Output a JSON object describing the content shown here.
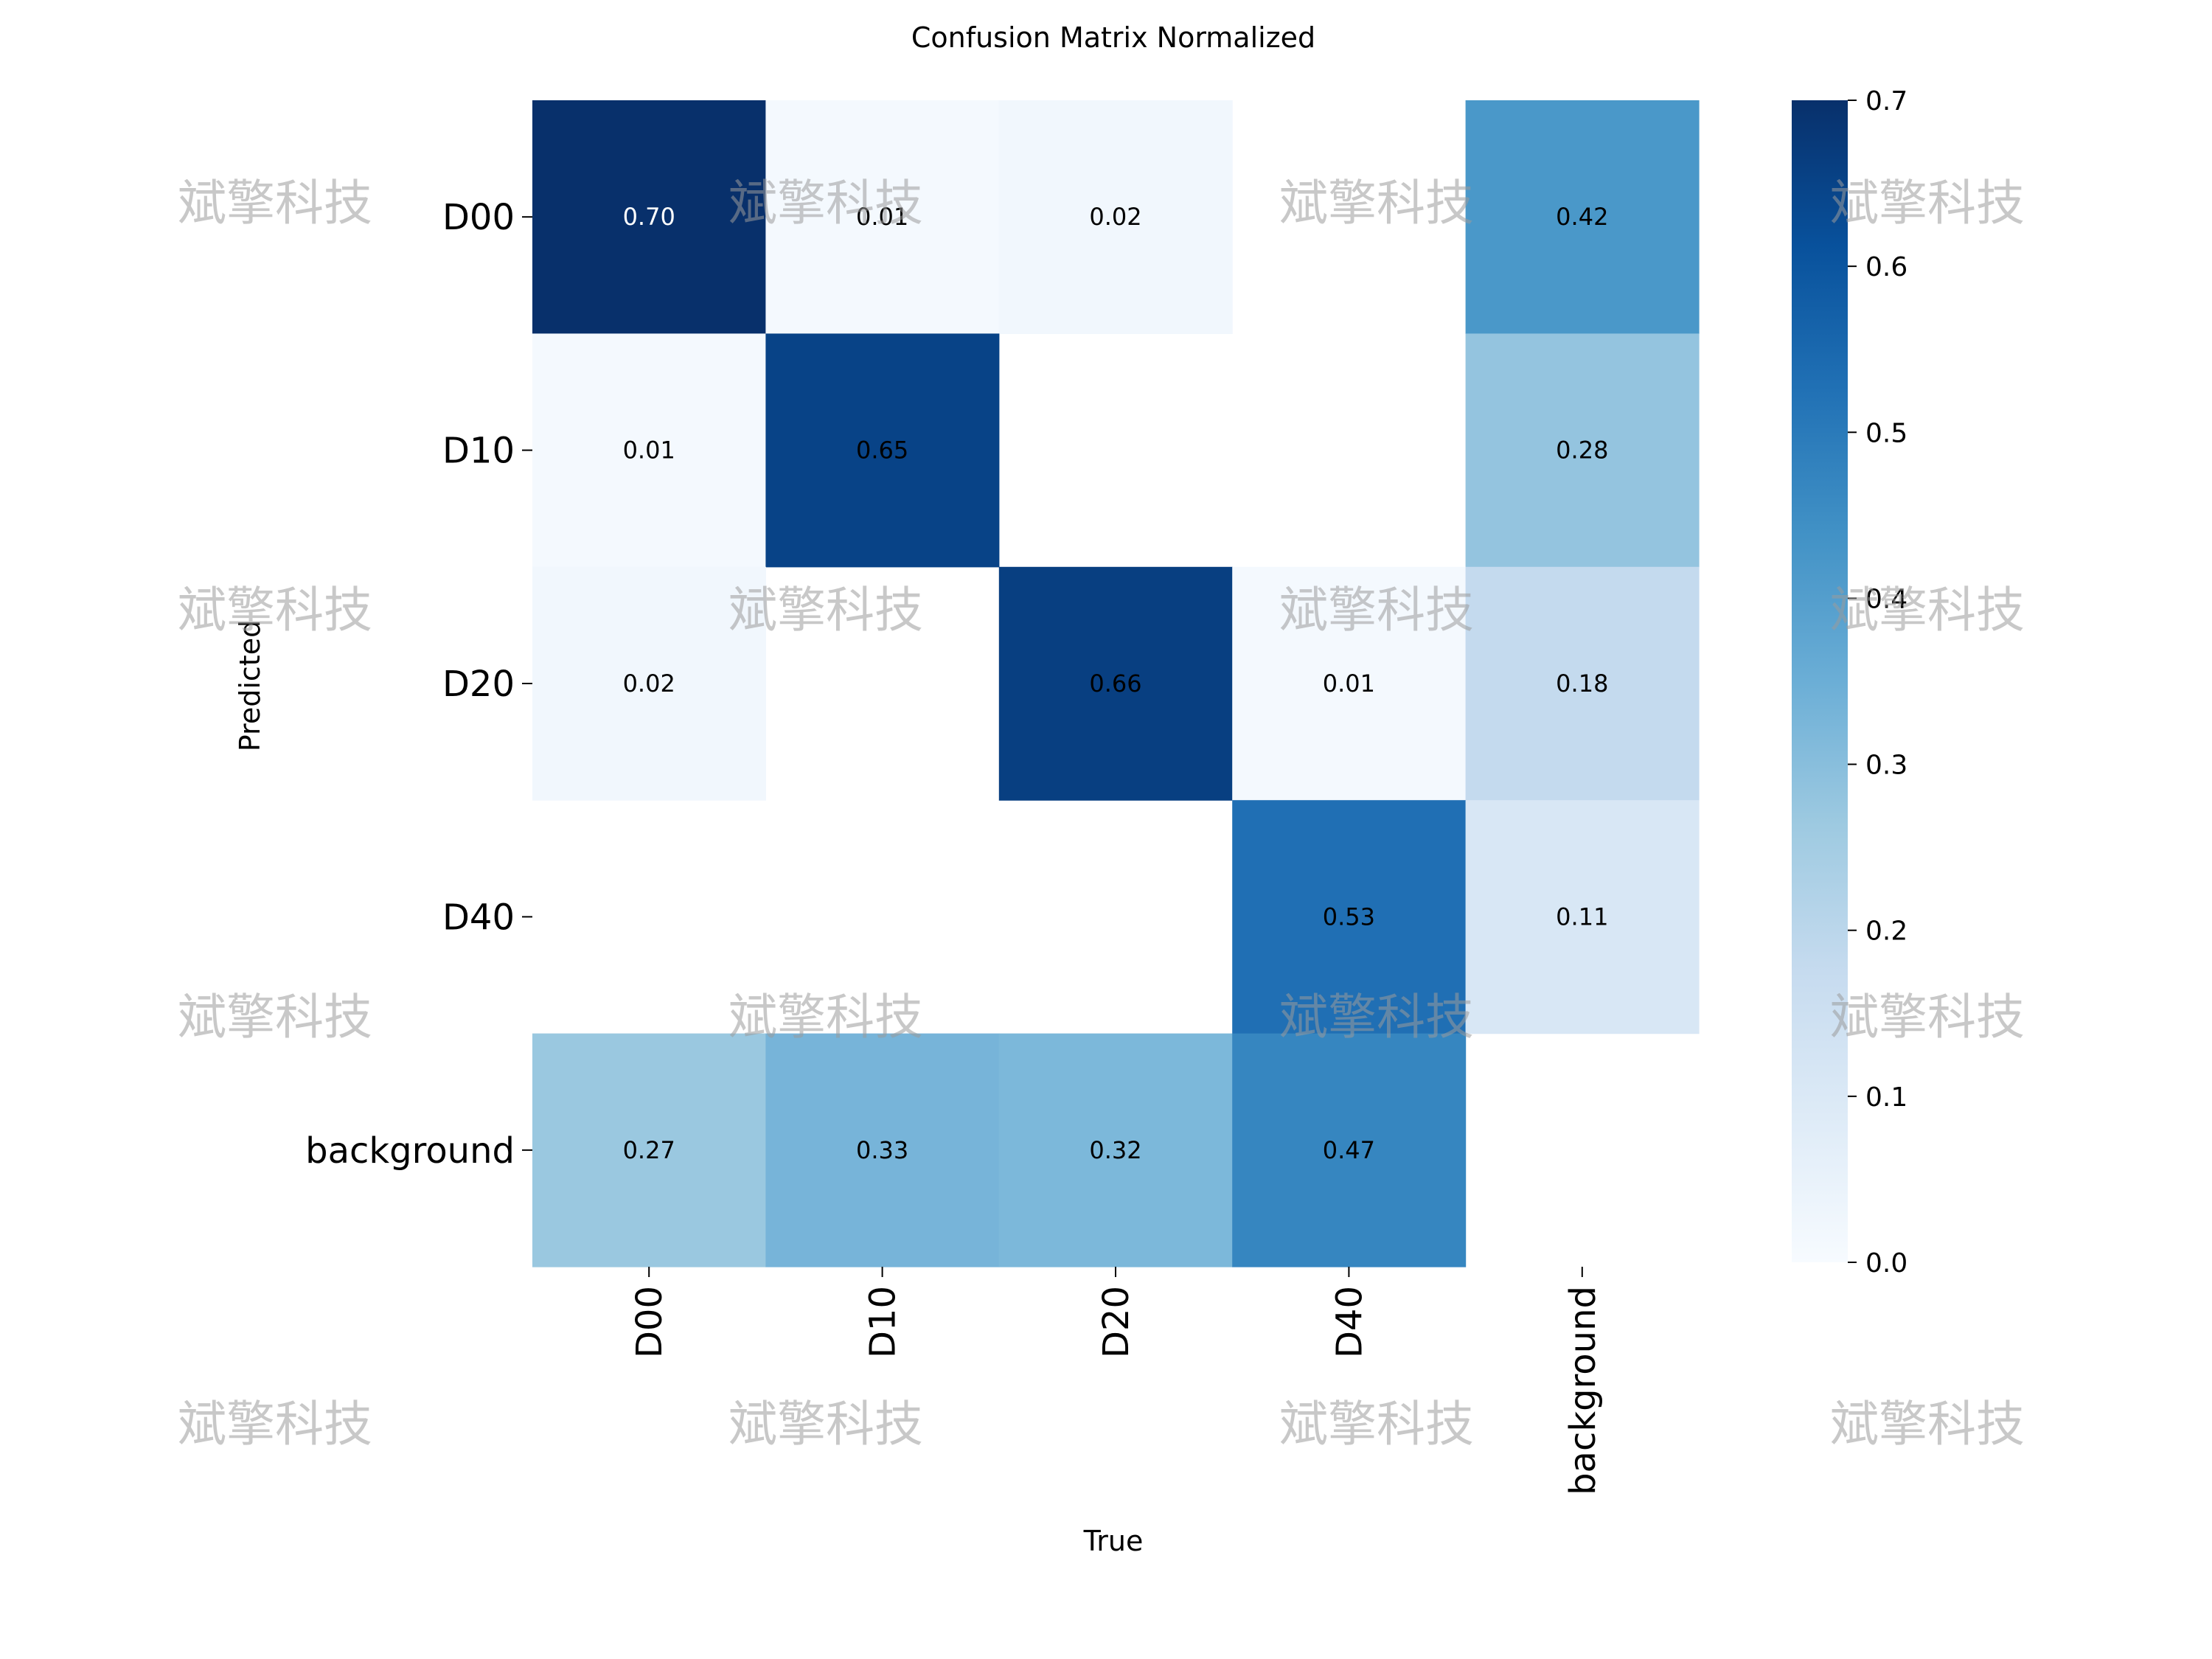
{
  "chart_data": {
    "type": "heatmap",
    "title": "Confusion Matrix Normalized",
    "xlabel": "True",
    "ylabel": "Predicted",
    "x_categories": [
      "D00",
      "D10",
      "D20",
      "D40",
      "background"
    ],
    "y_categories": [
      "D00",
      "D10",
      "D20",
      "D40",
      "background"
    ],
    "values": [
      [
        0.7,
        0.01,
        0.02,
        null,
        0.42
      ],
      [
        0.01,
        0.65,
        null,
        null,
        0.28
      ],
      [
        0.02,
        null,
        0.66,
        0.01,
        0.18
      ],
      [
        null,
        null,
        null,
        0.53,
        0.11
      ],
      [
        0.27,
        0.33,
        0.32,
        0.47,
        null
      ]
    ],
    "colorscale": "Blues",
    "vmin": 0.0,
    "vmax": 0.7,
    "colorbar_ticks": [
      "0.0",
      "0.1",
      "0.2",
      "0.3",
      "0.4",
      "0.5",
      "0.6",
      "0.7"
    ],
    "colorbar_tick_values": [
      0.0,
      0.1,
      0.2,
      0.3,
      0.4,
      0.5,
      0.6,
      0.7
    ]
  },
  "watermark": {
    "text": "斌擎科技"
  }
}
